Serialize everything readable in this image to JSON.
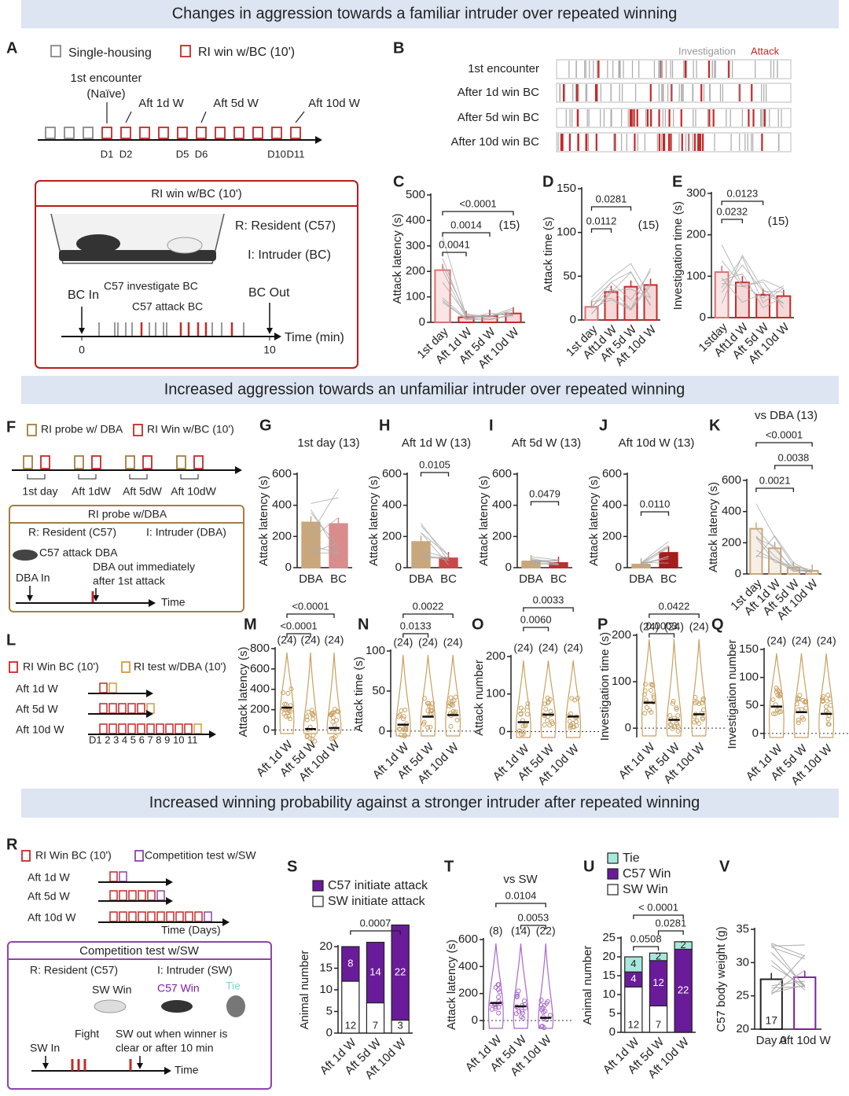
{
  "sections": [
    "Changes in aggression towards a familiar intruder over repeated winning",
    "Increased aggression towards an unfamiliar intruder over repeated winning",
    "Increased winning probability against a stronger intruder after repeated winning"
  ],
  "panels": {
    "A": {
      "letter": "A",
      "legend": [
        "Single-housing",
        "RI win w/BC (10')"
      ],
      "encounter": [
        "1st encounter",
        "(Naïve)"
      ],
      "marks": [
        "Aft 1d W",
        "Aft 5d W",
        "Aft 10d W"
      ],
      "days": [
        "D1",
        "D2",
        "D5",
        "D6",
        "D10",
        "D11"
      ],
      "box_title": "RI win w/BC (10')",
      "resident": "R: Resident (C57)",
      "intruder": "I: Intruder (BC)",
      "events": [
        "BC In",
        "C57 investigate BC",
        "C57 attack BC",
        "BC Out"
      ],
      "xticks": [
        0,
        10
      ],
      "xlabel": "Time (min)"
    },
    "B": {
      "letter": "B",
      "legend": [
        "Investigation",
        "Attack"
      ],
      "rows": [
        "1st encounter",
        "After 1d win BC",
        "After 5d win BC",
        "After 10d win BC"
      ]
    },
    "C": {
      "letter": "C",
      "ylabel": "Attack latency (s)",
      "ylim": [
        0,
        500
      ],
      "yticks": [
        0,
        100,
        200,
        300,
        400,
        500
      ],
      "categories": [
        "1st day",
        "Aft 1d W",
        "Aft 5d W",
        "Aft 10d W"
      ],
      "values": [
        205,
        20,
        25,
        35
      ],
      "colors": [
        "#e07070",
        "#c62828",
        "#c62828",
        "#c62828"
      ],
      "n": "(15)",
      "pvalues": [
        "<0.0001",
        "0.0014",
        "0.0041"
      ]
    },
    "D": {
      "letter": "D",
      "ylabel": "Attack time (s)",
      "ylim": [
        0,
        150
      ],
      "yticks": [
        0,
        50,
        100,
        150
      ],
      "categories": [
        "1st day",
        "Aft1d W",
        "Aft 5d W",
        "Aft 10d W"
      ],
      "values": [
        15,
        32,
        38,
        40
      ],
      "colors": [
        "#e07070",
        "#c62828",
        "#c62828",
        "#c62828"
      ],
      "n": "(15)",
      "pvalues": [
        "0.0281",
        "0.0112"
      ]
    },
    "E": {
      "letter": "E",
      "ylabel": "Investigation time (s)",
      "ylim": [
        0,
        300
      ],
      "yticks": [
        0,
        100,
        200,
        300
      ],
      "categories": [
        "1stday",
        "Aft1d W",
        "Aft 5d W",
        "Aft 10d W"
      ],
      "values": [
        110,
        85,
        55,
        52
      ],
      "colors": [
        "#e07070",
        "#c62828",
        "#c62828",
        "#c62828"
      ],
      "n": "(15)",
      "pvalues": [
        "0.0123",
        "0.0232"
      ]
    },
    "F": {
      "letter": "F",
      "legend": [
        "RI probe w/ DBA",
        "RI Win w/BC (10')"
      ],
      "labels": [
        "1st day",
        "Aft 1dW",
        "Aft 5dW",
        "Aft 10dW"
      ],
      "box_title": "RI probe w/DBA",
      "resident": "R: Resident (C57)",
      "intruder": "I: Intruder (DBA)",
      "events": [
        "C57 attack DBA",
        "DBA out immediately",
        "after 1st attack",
        "DBA In"
      ],
      "xlabel": "Time"
    },
    "G": {
      "letter": "G",
      "title": "1st day (13)",
      "ylabel": "Attack latency (s)",
      "ylim": [
        0,
        600
      ],
      "yticks": [
        0,
        200,
        400,
        600
      ],
      "categories": [
        "DBA",
        "BC"
      ],
      "values": [
        290,
        280
      ],
      "colors": [
        "#c9a77c",
        "#d98c8c"
      ],
      "pvalues": []
    },
    "H": {
      "letter": "H",
      "title": "Aft 1d W (13)",
      "ylabel": "Attack latency (s)",
      "ylim": [
        0,
        600
      ],
      "yticks": [
        0,
        200,
        400,
        600
      ],
      "categories": [
        "DBA",
        "BC"
      ],
      "values": [
        165,
        60
      ],
      "colors": [
        "#c9a77c",
        "#c84848"
      ],
      "pvalues": [
        "0.0105"
      ]
    },
    "I": {
      "letter": "I",
      "title": "Aft 5d W (13)",
      "ylabel": "Attack latency (s)",
      "ylim": [
        0,
        600
      ],
      "yticks": [
        0,
        200,
        400,
        600
      ],
      "categories": [
        "DBA",
        "BC"
      ],
      "values": [
        40,
        30
      ],
      "colors": [
        "#c9a77c",
        "#b83030"
      ],
      "pvalues": [
        "0.0479"
      ]
    },
    "J": {
      "letter": "J",
      "title": "Aft 10d W (13)",
      "ylabel": "Attack latency (s)",
      "ylim": [
        0,
        600
      ],
      "yticks": [
        0,
        200,
        400,
        600
      ],
      "categories": [
        "DBA",
        "BC"
      ],
      "values": [
        20,
        95
      ],
      "colors": [
        "#c9a77c",
        "#a51c1c"
      ],
      "pvalues": [
        "0.0110"
      ]
    },
    "K": {
      "letter": "K",
      "title": "vs DBA (13)",
      "ylabel": "Attack latency (s)",
      "ylim": [
        0,
        600
      ],
      "yticks": [
        0,
        200,
        400,
        600
      ],
      "categories": [
        "1st day",
        "Aft 1d W",
        "Aft 5d W",
        "Aft 10d W"
      ],
      "values": [
        290,
        165,
        40,
        20
      ],
      "colors": [
        "#c9a77c",
        "#c9a77c",
        "#c9a77c",
        "#c9a77c"
      ],
      "pvalues": [
        "<0.0001",
        "0.0038",
        "0.0021"
      ]
    },
    "L": {
      "letter": "L",
      "legend": [
        "RI Win BC (10')",
        "RI test w/DBA (10')"
      ],
      "rows": [
        "Aft 1d W",
        "Aft 5d W",
        "Aft 10d W"
      ],
      "days": "D1 2 3 4 5 6 7 8 9 10 11"
    },
    "M": {
      "letter": "M",
      "ylabel": "Attack latency (s)",
      "ylim": [
        -50,
        800
      ],
      "yticks": [
        0,
        200,
        400,
        600,
        800
      ],
      "categories": [
        "Aft 1d W",
        "Aft 5d W",
        "Aft 10d W"
      ],
      "values": [
        220,
        10,
        20
      ],
      "color": "#c8a060",
      "n": [
        "(24)",
        "(24)",
        "(24)"
      ],
      "pvalues": [
        "<0.0001",
        "<0.0001"
      ]
    },
    "N": {
      "letter": "N",
      "ylabel": "Attack time (s)",
      "ylim": [
        -8,
        100
      ],
      "yticks": [
        0,
        50,
        100
      ],
      "categories": [
        "Aft 1d W",
        "Aft 5d W",
        "Aft 10d W"
      ],
      "values": [
        8,
        18,
        20
      ],
      "color": "#c8a060",
      "n": [
        "(24)",
        "(24)",
        "(24)"
      ],
      "pvalues": [
        "0.0022",
        "0.0133"
      ]
    },
    "O": {
      "letter": "O",
      "ylabel": "Attack number",
      "ylim": [
        -20,
        200
      ],
      "yticks": [
        0,
        100,
        200
      ],
      "categories": [
        "Aft 1d W",
        "Aft 5d W",
        "Aft 10d W"
      ],
      "values": [
        25,
        45,
        40
      ],
      "color": "#c8a060",
      "n": [
        "(24)",
        "(24)",
        "(24)"
      ],
      "pvalues": [
        "0.0033",
        "0.0060"
      ]
    },
    "P": {
      "letter": "P",
      "ylabel": "Investigation time (s)",
      "ylim": [
        -20,
        200
      ],
      "yticks": [
        0,
        100,
        200
      ],
      "categories": [
        "Aft 1d W",
        "Aft 5d W",
        "Aft 10d W"
      ],
      "values": [
        55,
        18,
        30
      ],
      "color": "#c8a060",
      "n": [
        "(24)",
        "(24)",
        "(24)"
      ],
      "pvalues": [
        "0.0422",
        "0.0003"
      ]
    },
    "Q": {
      "letter": "Q",
      "ylabel": "Investigation number",
      "ylim": [
        -10,
        150
      ],
      "yticks": [
        0,
        50,
        100,
        150
      ],
      "categories": [
        "Aft 1d W",
        "Aft 5d W",
        "Aft 10d W"
      ],
      "values": [
        48,
        38,
        35
      ],
      "color": "#c8a060",
      "n": [
        "(24)",
        "(24)",
        "(24)"
      ],
      "pvalues": []
    },
    "R": {
      "letter": "R",
      "legend": [
        "RI Win BC (10')",
        "Competition test w/SW"
      ],
      "rows": [
        "Aft 1d W",
        "Aft 5d W",
        "Aft 10d W"
      ],
      "xlabel": "Time (Days)",
      "box_title": "Competition test w/SW",
      "resident": "R: Resident (C57)",
      "intruder": "I: Intruder (SW)",
      "outcomes": [
        "SW Win",
        "C57 Win",
        "Tie"
      ],
      "events": [
        "Fight",
        "SW out when winner is",
        "clear or after 10 min",
        "SW In"
      ],
      "xlabel2": "Time"
    },
    "S": {
      "letter": "S",
      "ylabel": "Animal number",
      "ylim": [
        0,
        20
      ],
      "yticks": [
        0,
        5,
        10,
        15,
        20
      ],
      "categories": [
        "Aft 1d W",
        "Aft 5d W",
        "Aft 10d W"
      ],
      "series": [
        {
          "name": "C57 initiate attack",
          "color": "#6a1b9a",
          "values": [
            8,
            14,
            22
          ]
        },
        {
          "name": "SW initiate attack",
          "color": "#ffffff",
          "values": [
            12,
            7,
            3
          ]
        }
      ],
      "pvalues": [
        "0.0007"
      ]
    },
    "T": {
      "letter": "T",
      "title": "vs SW",
      "ylabel": "Attack latency (s)",
      "ylim": [
        -70,
        600
      ],
      "yticks": [
        0,
        200,
        400,
        600
      ],
      "categories": [
        "Aft 1d W",
        "Aft 5d W",
        "Aft 10d W"
      ],
      "values": [
        130,
        105,
        20
      ],
      "color": "#a868c8",
      "n": [
        "(8)",
        "(14)",
        "(22)"
      ],
      "pvalues": [
        "0.0104",
        "0.0053"
      ]
    },
    "U": {
      "letter": "U",
      "ylabel": "Animal number",
      "ylim": [
        0,
        25
      ],
      "yticks": [
        0,
        5,
        10,
        15,
        20,
        25
      ],
      "categories": [
        "Aft 1d W",
        "Aft 5d W",
        "Aft 10d W"
      ],
      "series": [
        {
          "name": "Tie",
          "color": "#a8e8dc",
          "values": [
            4,
            2,
            2
          ]
        },
        {
          "name": "C57 Win",
          "color": "#6a1b9a",
          "values": [
            4,
            12,
            22
          ]
        },
        {
          "name": "SW Win",
          "color": "#ffffff",
          "values": [
            12,
            7,
            0
          ]
        }
      ],
      "pvalues": [
        "< 0.0001",
        "0.0508",
        "0.0281"
      ]
    },
    "V": {
      "letter": "V",
      "ylabel": "C57 body weight (g)",
      "ylim": [
        20,
        35
      ],
      "yticks": [
        20,
        25,
        30,
        35
      ],
      "categories": [
        "Day 0",
        "Aft 10d W"
      ],
      "values": [
        27.5,
        27.8
      ],
      "colors": [
        "#222222",
        "#7b1fa2"
      ],
      "n": "17"
    }
  }
}
